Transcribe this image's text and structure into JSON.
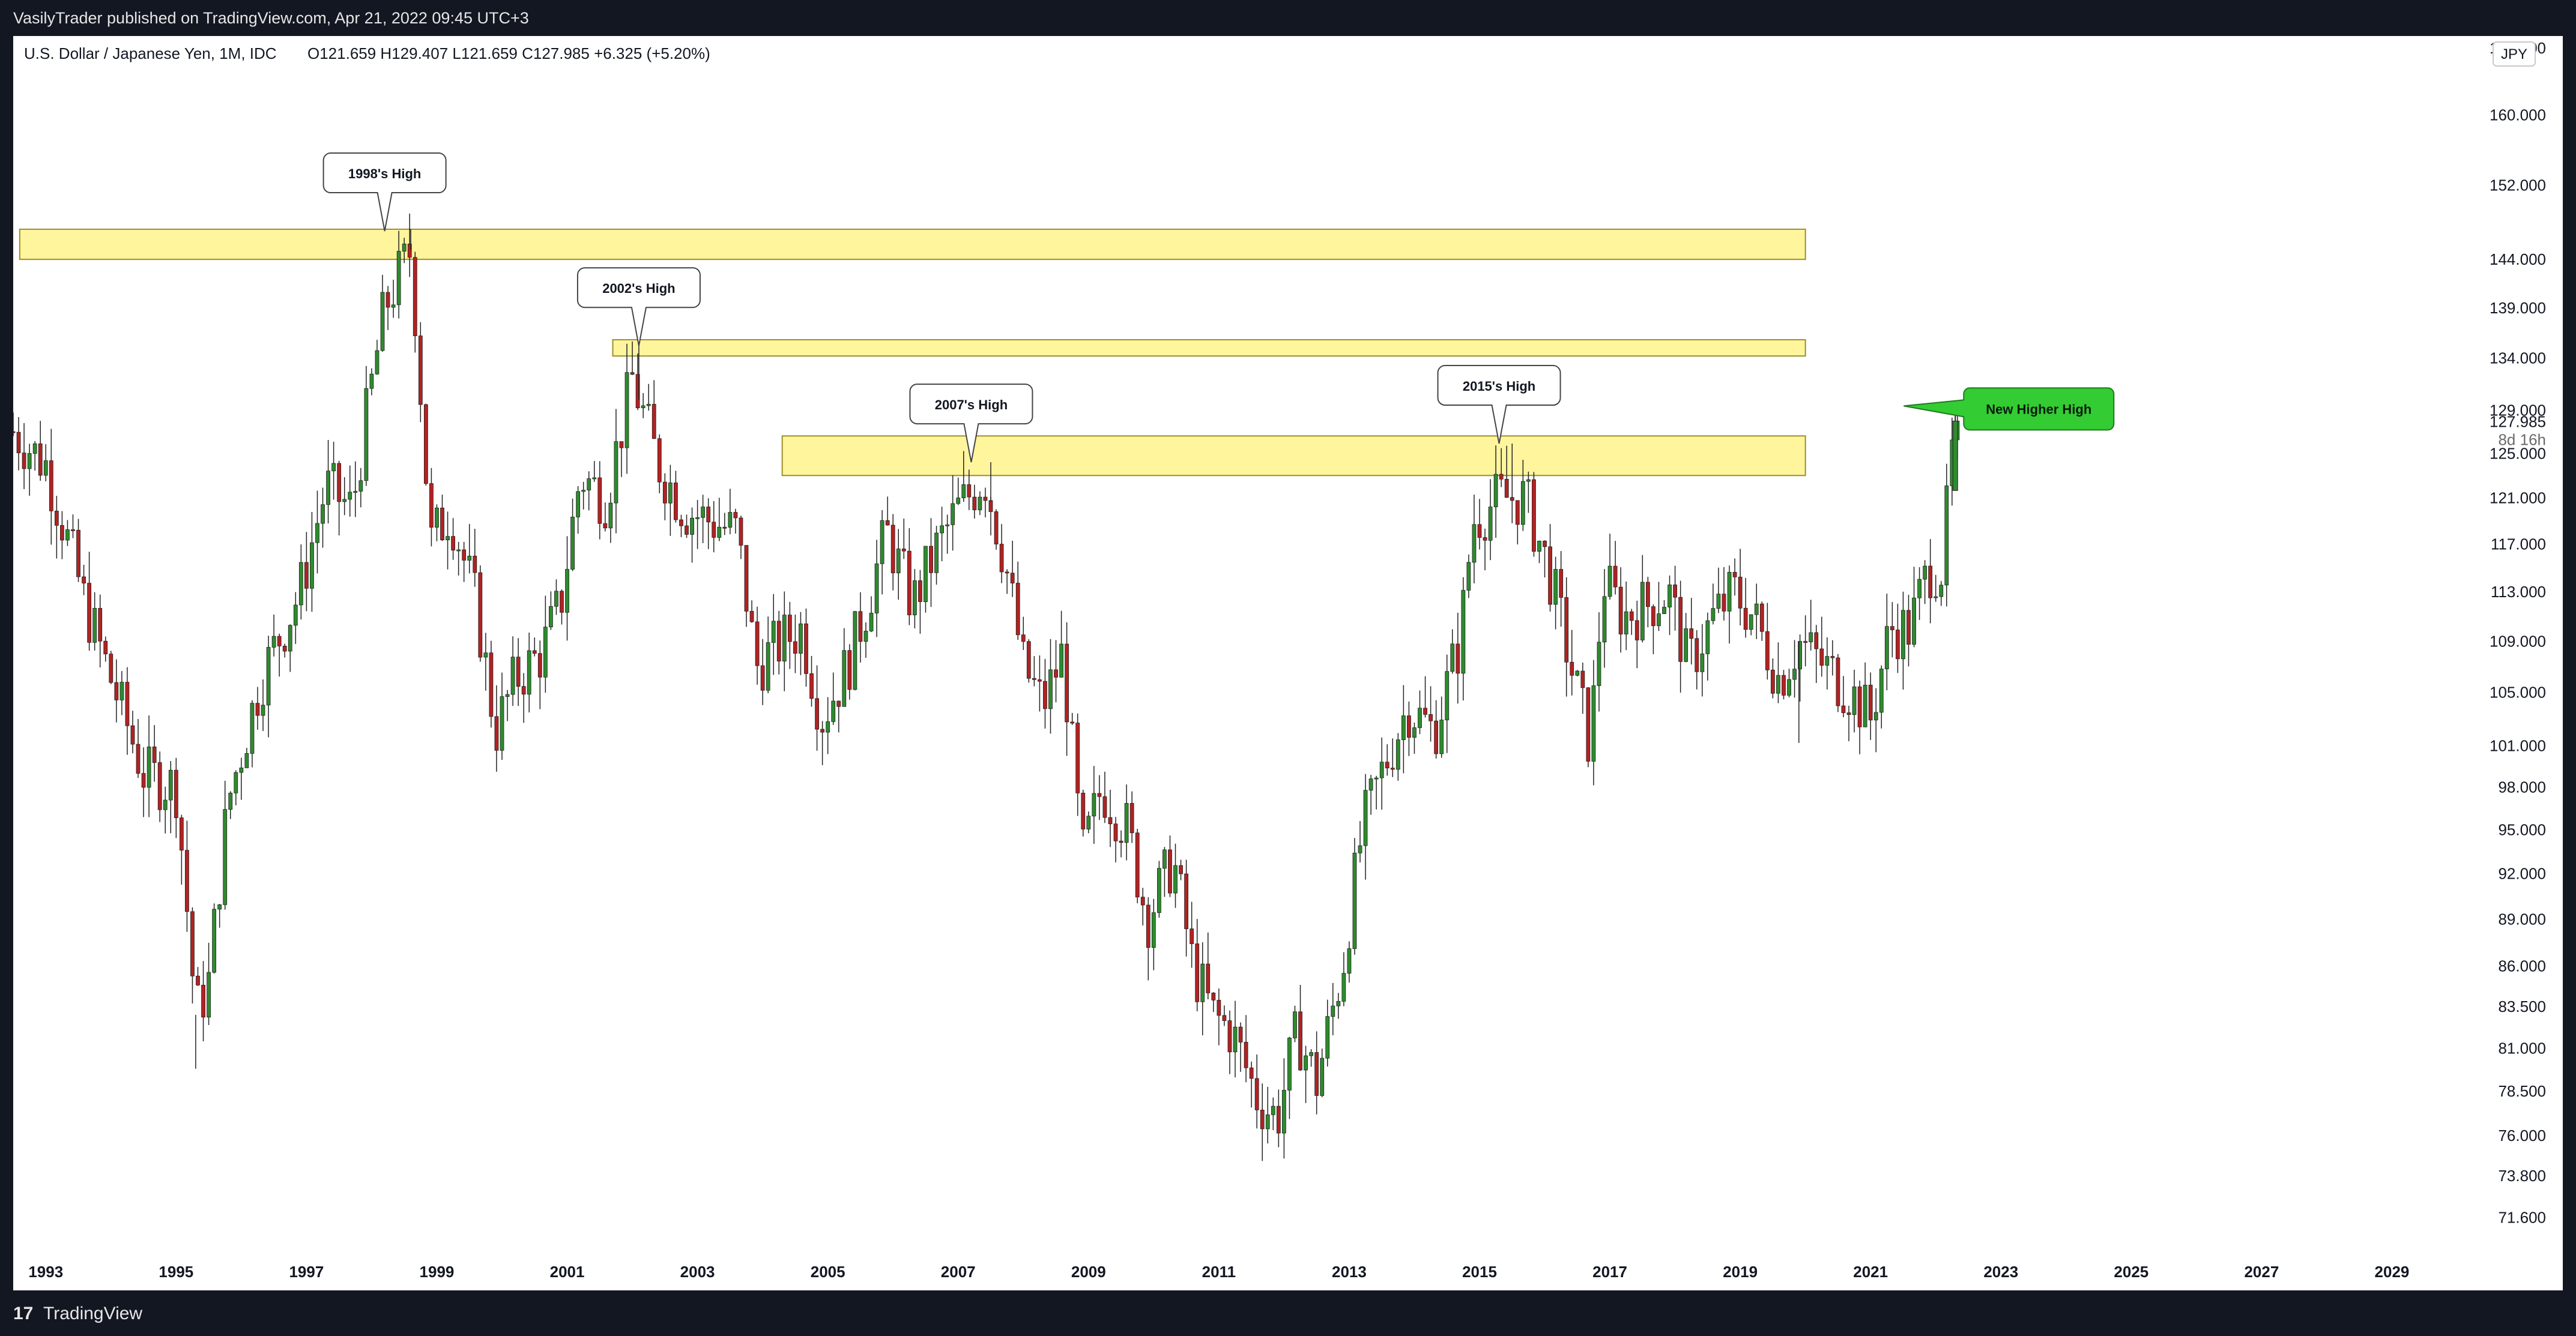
{
  "header": {
    "published": "VasilyTrader published on TradingView.com, Apr 21, 2022 09:45 UTC+3"
  },
  "footer": {
    "logo": "17",
    "brand": "TradingView"
  },
  "chart_data": {
    "type": "candlestick",
    "title": "U.S. Dollar / Japanese Yen, 1M, IDC",
    "ohlc_label": "O121.659  H129.407  L121.659  C127.985  +6.325 (+5.20%)",
    "currency": "JPY",
    "current_price": "127.985",
    "countdown": "8d 16h",
    "scale": "log",
    "y_ticks": [
      "160.000",
      "152.000",
      "144.000",
      "139.000",
      "134.000",
      "129.000",
      "125.000",
      "121.000",
      "117.000",
      "113.000",
      "109.000",
      "105.000",
      "101.000",
      "98.000",
      "95.000",
      "92.000",
      "89.000",
      "86.000",
      "83.500",
      "81.000",
      "78.500",
      "76.000",
      "73.800",
      "71.600"
    ],
    "top_clipped_tick": "168.000",
    "x_ticks": [
      "1993",
      "1995",
      "1997",
      "1999",
      "2001",
      "2003",
      "2005",
      "2007",
      "2009",
      "2011",
      "2013",
      "2015",
      "2017",
      "2019",
      "2021",
      "2023",
      "2025",
      "2027",
      "2029"
    ],
    "x_range": [
      1992.5,
      2030
    ],
    "y_range": [
      70,
      168
    ],
    "zones": [
      {
        "x_start": 1992.6,
        "x_end": 2020.0,
        "low": 144.0,
        "high": 147.2
      },
      {
        "x_start": 2001.7,
        "x_end": 2020.0,
        "low": 134.2,
        "high": 135.8
      },
      {
        "x_start": 2004.3,
        "x_end": 2020.0,
        "low": 123.0,
        "high": 126.6
      }
    ],
    "annotations": [
      {
        "text": "1998's High",
        "x": 1998.2,
        "y": 147.0
      },
      {
        "text": "2002's High",
        "x": 2002.1,
        "y": 135.2
      },
      {
        "text": "2007's High",
        "x": 2007.2,
        "y": 124.2
      },
      {
        "text": "2015's High",
        "x": 2015.3,
        "y": 125.9
      }
    ],
    "callout": {
      "text": "New Higher High",
      "color": "#33cc33",
      "x": 2021.6,
      "y": 129.4
    },
    "bull_color": "#2e8b2e",
    "bear_color": "#b22222",
    "anchors": [
      [
        1992.5,
        127
      ],
      [
        1993.0,
        124
      ],
      [
        1993.6,
        112
      ],
      [
        1994.0,
        106
      ],
      [
        1994.5,
        99
      ],
      [
        1995.0,
        98
      ],
      [
        1995.3,
        83
      ],
      [
        1995.5,
        85
      ],
      [
        1995.8,
        97
      ],
      [
        1996.3,
        106
      ],
      [
        1996.9,
        113
      ],
      [
        1997.3,
        122
      ],
      [
        1997.7,
        120
      ],
      [
        1998.2,
        139
      ],
      [
        1998.6,
        145
      ],
      [
        1998.9,
        117
      ],
      [
        1999.2,
        120
      ],
      [
        1999.6,
        112
      ],
      [
        1999.9,
        102
      ],
      [
        2000.2,
        106
      ],
      [
        2000.6,
        108
      ],
      [
        2000.9,
        112
      ],
      [
        2001.2,
        123
      ],
      [
        2001.6,
        121
      ],
      [
        2002.0,
        132
      ],
      [
        2002.4,
        124
      ],
      [
        2002.8,
        120
      ],
      [
        2003.2,
        119
      ],
      [
        2003.6,
        118
      ],
      [
        2003.9,
        107
      ],
      [
        2004.3,
        109
      ],
      [
        2004.6,
        110
      ],
      [
        2004.9,
        103
      ],
      [
        2005.3,
        107
      ],
      [
        2005.6,
        112
      ],
      [
        2005.9,
        118
      ],
      [
        2006.3,
        112
      ],
      [
        2006.7,
        117
      ],
      [
        2007.0,
        120
      ],
      [
        2007.4,
        123
      ],
      [
        2007.7,
        116
      ],
      [
        2008.0,
        107
      ],
      [
        2008.3,
        104
      ],
      [
        2008.6,
        108
      ],
      [
        2008.9,
        93
      ],
      [
        2009.2,
        98
      ],
      [
        2009.6,
        95
      ],
      [
        2009.9,
        89
      ],
      [
        2010.3,
        93
      ],
      [
        2010.6,
        86
      ],
      [
        2010.9,
        83
      ],
      [
        2011.2,
        82
      ],
      [
        2011.6,
        78
      ],
      [
        2011.9,
        77
      ],
      [
        2012.2,
        82
      ],
      [
        2012.5,
        79
      ],
      [
        2012.9,
        86
      ],
      [
        2013.2,
        95
      ],
      [
        2013.5,
        99
      ],
      [
        2013.9,
        104
      ],
      [
        2014.3,
        102
      ],
      [
        2014.7,
        109
      ],
      [
        2014.9,
        119
      ],
      [
        2015.3,
        121
      ],
      [
        2015.7,
        121
      ],
      [
        2016.1,
        114
      ],
      [
        2016.4,
        107
      ],
      [
        2016.7,
        101
      ],
      [
        2016.9,
        114
      ],
      [
        2017.2,
        111
      ],
      [
        2017.6,
        112
      ],
      [
        2017.9,
        113
      ],
      [
        2018.2,
        107
      ],
      [
        2018.6,
        111
      ],
      [
        2018.9,
        113
      ],
      [
        2019.2,
        111
      ],
      [
        2019.6,
        106
      ],
      [
        2019.9,
        109
      ],
      [
        2020.3,
        107
      ],
      [
        2020.7,
        105
      ],
      [
        2021.0,
        103
      ],
      [
        2021.3,
        110
      ],
      [
        2021.6,
        110
      ],
      [
        2021.9,
        115
      ],
      [
        2022.1,
        115
      ],
      [
        2022.2,
        121.7
      ],
      [
        2022.3,
        127.985
      ]
    ],
    "wicks_extra": [
      [
        1995.3,
        79.8
      ],
      [
        1998.6,
        147.2
      ],
      [
        2002.1,
        135.2
      ],
      [
        2007.5,
        124.2
      ],
      [
        2015.5,
        125.9
      ],
      [
        2019.9,
        101.2
      ]
    ]
  }
}
